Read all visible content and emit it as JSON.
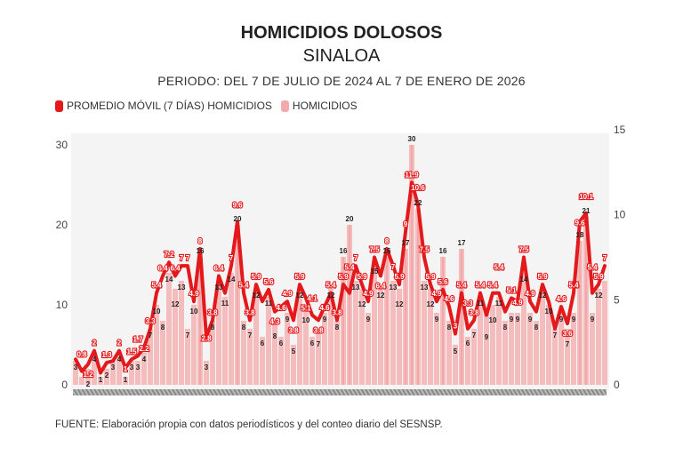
{
  "chart_data": {
    "type": "bar+line",
    "title": "HOMICIDIOS DOLOSOS",
    "subtitle": "SINALOA",
    "period": "PERIODO: DEL 7 DE JULIO DE 2024 AL 7 DE ENERO DE 2026",
    "source": "FUENTE: Elaboración propia con datos periodísticos y del conteo diario del SESNSP.",
    "legend": [
      {
        "label": "PROMEDIO MÓVIL (7 DÍAS) HOMICIDIOS",
        "color": "#e3191c",
        "axis": "right"
      },
      {
        "label": "HOMICIDIOS",
        "color": "#f4a9aa",
        "axis": "left"
      }
    ],
    "legend_position": "top-left",
    "left_axis": {
      "ylim": [
        0,
        30
      ],
      "ticks": [
        "0",
        "10",
        "20",
        "30"
      ]
    },
    "right_axis": {
      "ylim": [
        0,
        15
      ],
      "ticks": [
        "0",
        "5",
        "10",
        "15"
      ]
    },
    "grid": false,
    "x_start": "2024-07-07",
    "x_end": "2026-01-07",
    "series": [
      {
        "name": "PROMEDIO MÓVIL (7 DÍAS) HOMICIDIOS",
        "values": [
          1.5,
          0.8,
          1.2,
          2.0,
          0.7,
          1.3,
          1.4,
          2.0,
          1.0,
          1.5,
          1.7,
          2.2,
          3.3,
          5.4,
          6.4,
          7.2,
          6.4,
          7.0,
          7.0,
          4.9,
          8.0,
          2.8,
          3.8,
          6.4,
          5.4,
          7.0,
          9.6,
          5.4,
          3.8,
          5.9,
          4.9,
          5.6,
          4.3,
          4.6,
          4.9,
          3.8,
          5.9,
          5.1,
          4.1,
          3.8,
          4.6,
          5.4,
          3.8,
          5.9,
          5.4,
          7.0,
          5.9,
          4.9,
          7.5,
          6.4,
          8.0,
          7.0,
          5.9,
          9.0,
          11.9,
          10.6,
          7.5,
          5.9,
          4.9,
          5.6,
          4.6,
          3.0,
          5.4,
          3.3,
          3.8,
          5.4,
          4.1,
          5.4,
          5.4,
          4.3,
          5.1,
          4.9,
          7.5,
          4.9,
          4.3,
          5.9,
          4.9,
          3.3,
          4.6,
          3.6,
          5.4,
          9.6,
          10.1,
          5.4,
          5.9,
          7.0
        ]
      },
      {
        "name": "HOMICIDIOS",
        "values": [
          3,
          1,
          2,
          4,
          1,
          2,
          3,
          4,
          1,
          3,
          3,
          4,
          7,
          10,
          8,
          14,
          12,
          13,
          7,
          10,
          16,
          3,
          8,
          13,
          11,
          14,
          20,
          8,
          7,
          12,
          6,
          11,
          8,
          6,
          9,
          5,
          12,
          10,
          6,
          7,
          9,
          12,
          8,
          16,
          20,
          13,
          12,
          9,
          15,
          12,
          16,
          13,
          12,
          17,
          30,
          22,
          13,
          12,
          9,
          16,
          8,
          5,
          17,
          6,
          7,
          11,
          9,
          10,
          11,
          8,
          9,
          9,
          14,
          9,
          8,
          12,
          10,
          7,
          9,
          7,
          9,
          18,
          21,
          9,
          12,
          13
        ]
      }
    ]
  }
}
